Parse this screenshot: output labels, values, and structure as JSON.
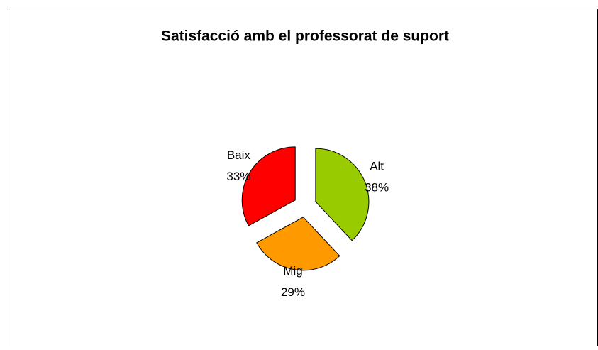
{
  "chart_data": {
    "type": "pie",
    "title": "Satisfacció amb el professorat de suport",
    "categories": [
      "Alt",
      "Mig",
      "Baix"
    ],
    "values": [
      38,
      29,
      33
    ],
    "value_labels": [
      "38%",
      "29%",
      "33%"
    ],
    "colors": [
      "#99cc00",
      "#ff9900",
      "#ff0000"
    ],
    "exploded": true
  }
}
